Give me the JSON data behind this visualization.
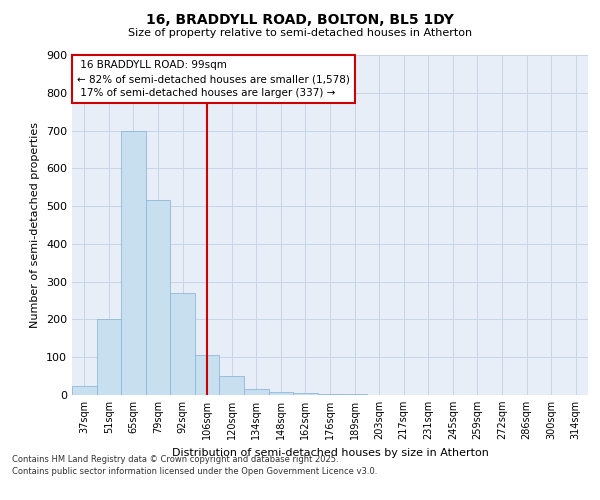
{
  "title_line1": "16, BRADDYLL ROAD, BOLTON, BL5 1DY",
  "title_line2": "Size of property relative to semi-detached houses in Atherton",
  "xlabel": "Distribution of semi-detached houses by size in Atherton",
  "ylabel": "Number of semi-detached properties",
  "categories": [
    "37sqm",
    "51sqm",
    "65sqm",
    "79sqm",
    "92sqm",
    "106sqm",
    "120sqm",
    "134sqm",
    "148sqm",
    "162sqm",
    "176sqm",
    "189sqm",
    "203sqm",
    "217sqm",
    "231sqm",
    "245sqm",
    "259sqm",
    "272sqm",
    "286sqm",
    "300sqm",
    "314sqm"
  ],
  "values": [
    25,
    200,
    700,
    515,
    270,
    105,
    50,
    15,
    8,
    4,
    3,
    2,
    1,
    1,
    0,
    0,
    0,
    0,
    0,
    0,
    0
  ],
  "property_label": "16 BRADDYLL ROAD: 99sqm",
  "pct_smaller": 82,
  "n_smaller": 1578,
  "pct_larger": 17,
  "n_larger": 337,
  "vline_x_index": 5.0,
  "bar_color": "#c8dff0",
  "bar_edge_color": "#90b8d8",
  "vline_color": "#cc0000",
  "annotation_box_edge_color": "#cc0000",
  "grid_color": "#c8d4e8",
  "background_color": "#e8eef8",
  "ylim": [
    0,
    900
  ],
  "yticks": [
    0,
    100,
    200,
    300,
    400,
    500,
    600,
    700,
    800,
    900
  ],
  "footer_line1": "Contains HM Land Registry data © Crown copyright and database right 2025.",
  "footer_line2": "Contains public sector information licensed under the Open Government Licence v3.0."
}
